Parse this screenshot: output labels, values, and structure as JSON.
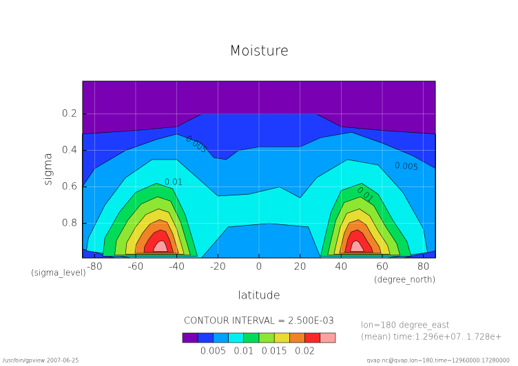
{
  "chart_data": {
    "type": "contour",
    "title": "Moisture",
    "x_label": "latitude",
    "y_label": "sigma",
    "y_unit": "(sigma_level)",
    "x_unit": "(degree_north)",
    "xlim": [
      -85.8,
      85.8
    ],
    "xticks": [
      -80,
      -60,
      -40,
      -20,
      0,
      20,
      40,
      60,
      80
    ],
    "ylim": [
      0.02,
      0.99
    ],
    "yticks": [
      0.2,
      0.4,
      0.6,
      0.8
    ],
    "grid": true,
    "levels": [
      0,
      0.0025,
      0.005,
      0.0075,
      0.01,
      0.0125,
      0.015,
      0.0175,
      0.02,
      0.0225,
      0.025
    ],
    "colors": [
      "#7a00b4",
      "#1e3cff",
      "#00a0ff",
      "#00f0f0",
      "#00dc5a",
      "#8ce632",
      "#e6dc32",
      "#f08228",
      "#fa2828",
      "#ffa0a0"
    ],
    "colorbar_ticks": [
      0.005,
      0.01,
      0.015,
      0.02
    ],
    "contour_labels": [
      0.005,
      0.005,
      0.01,
      0.01
    ],
    "contour_interval": "CONTOUR INTERVAL = 2.500E-03",
    "notes": [
      "lon=180 degree_east",
      "(mean) time:1.296e+07..1.728e+"
    ],
    "footer_left": "/usr/bin/gpview  2007-06-25",
    "footer_right": "qvap.nc@qvap,lon=180,time=12960000:17280000"
  }
}
